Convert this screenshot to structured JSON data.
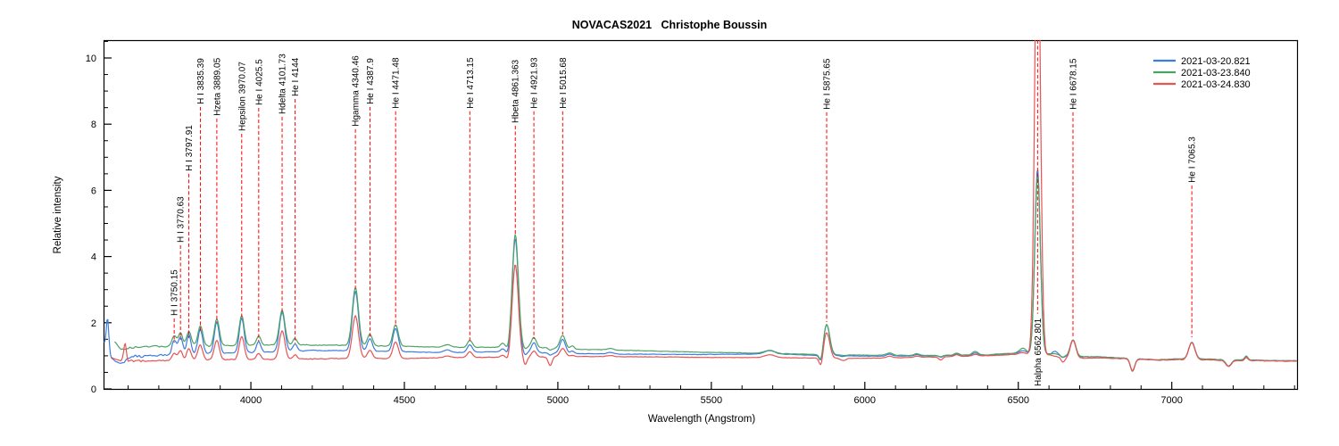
{
  "chart_data": {
    "type": "line",
    "title": "NOVACAS2021   Christophe Boussin",
    "xlabel": "Wavelength (Angstrom)",
    "ylabel": "Relative intensity",
    "xlim": [
      3520,
      7411
    ],
    "ylim": [
      0,
      10.54
    ],
    "x_major_ticks": [
      4000,
      4500,
      5000,
      5500,
      6000,
      6500,
      7000
    ],
    "x_minor_step": 100,
    "y_major_ticks": [
      0,
      2,
      4,
      6,
      8,
      10
    ],
    "y_minor_step": 0.5,
    "grid": false,
    "legend_position": "top-right",
    "axis_color": "#000000",
    "annotation_color": "#ff0000",
    "series": [
      {
        "name": "2021-03-20.821",
        "color": "#3d7ce0",
        "start": 3522,
        "seed": 1,
        "continuum": [
          [
            3522,
            1.35
          ],
          [
            3545,
            0.95
          ],
          [
            3562,
            0.82
          ],
          [
            3584,
            0.8
          ],
          [
            3620,
            0.98
          ],
          [
            3700,
            1.02
          ],
          [
            3850,
            1.06
          ],
          [
            4000,
            1.1
          ],
          [
            4200,
            1.16
          ],
          [
            4400,
            1.14
          ],
          [
            4600,
            1.1
          ],
          [
            4800,
            1.12
          ],
          [
            5000,
            1.08
          ],
          [
            5200,
            1.05
          ],
          [
            5500,
            1.04
          ],
          [
            5700,
            1.06
          ],
          [
            5820,
            1.02
          ],
          [
            6000,
            0.99
          ],
          [
            6200,
            1.0
          ],
          [
            6400,
            1.02
          ],
          [
            6500,
            1.08
          ],
          [
            6600,
            1.05
          ],
          [
            6660,
            0.97
          ],
          [
            6760,
            0.97
          ],
          [
            6845,
            0.93
          ],
          [
            6950,
            0.88
          ],
          [
            7050,
            0.91
          ],
          [
            7150,
            0.89
          ],
          [
            7300,
            0.86
          ],
          [
            7408,
            0.85
          ]
        ]
      },
      {
        "name": "2021-03-23.840",
        "color": "#4da263",
        "start": 3556,
        "seed": 2,
        "continuum": [
          [
            3556,
            1.42
          ],
          [
            3578,
            1.18
          ],
          [
            3620,
            1.26
          ],
          [
            3700,
            1.29
          ],
          [
            3900,
            1.31
          ],
          [
            4100,
            1.33
          ],
          [
            4300,
            1.32
          ],
          [
            4500,
            1.28
          ],
          [
            4700,
            1.25
          ],
          [
            4900,
            1.27
          ],
          [
            5050,
            1.2
          ],
          [
            5250,
            1.16
          ],
          [
            5450,
            1.11
          ],
          [
            5650,
            1.08
          ],
          [
            5850,
            1.04
          ],
          [
            6000,
            1.02
          ],
          [
            6200,
            1.01
          ],
          [
            6400,
            1.03
          ],
          [
            6500,
            1.09
          ],
          [
            6600,
            1.06
          ],
          [
            6660,
            0.99
          ],
          [
            6760,
            0.97
          ],
          [
            6845,
            0.93
          ],
          [
            6950,
            0.88
          ],
          [
            7050,
            0.91
          ],
          [
            7150,
            0.89
          ],
          [
            7300,
            0.86
          ],
          [
            7408,
            0.85
          ]
        ]
      },
      {
        "name": "2021-03-24.830",
        "color": "#e85353",
        "start": 3546,
        "seed": 3,
        "continuum": [
          [
            3546,
            0.95
          ],
          [
            3570,
            0.88
          ],
          [
            3620,
            0.85
          ],
          [
            3700,
            0.86
          ],
          [
            3800,
            0.88
          ],
          [
            3950,
            0.89
          ],
          [
            4100,
            0.9
          ],
          [
            4300,
            0.92
          ],
          [
            4500,
            0.92
          ],
          [
            4700,
            0.95
          ],
          [
            4900,
            0.96
          ],
          [
            5100,
            0.98
          ],
          [
            5300,
            0.97
          ],
          [
            5500,
            0.95
          ],
          [
            5700,
            0.95
          ],
          [
            5900,
            0.92
          ],
          [
            6050,
            0.93
          ],
          [
            6200,
            0.96
          ],
          [
            6400,
            1.0
          ],
          [
            6500,
            1.05
          ],
          [
            6600,
            1.02
          ],
          [
            6660,
            0.92
          ],
          [
            6760,
            0.94
          ],
          [
            6845,
            0.91
          ],
          [
            6950,
            0.87
          ],
          [
            7050,
            0.89
          ],
          [
            7150,
            0.87
          ],
          [
            7300,
            0.85
          ],
          [
            7408,
            0.84
          ]
        ]
      }
    ],
    "spectral_lines": [
      {
        "label": "H I 3750.15",
        "wl": 3750.15,
        "sigma": 7,
        "amp": [
          0.45,
          0.3,
          0.2
        ],
        "line_top": 2.13,
        "line_bot": 1.4,
        "label_pos": "above"
      },
      {
        "label": "H I 3770.63",
        "wl": 3770.63,
        "sigma": 7,
        "amp": [
          0.55,
          0.4,
          0.28
        ],
        "line_top": 4.34,
        "line_bot": 1.48,
        "label_pos": "above"
      },
      {
        "label": "H I 3797.91",
        "wl": 3797.91,
        "sigma": 7,
        "amp": [
          0.6,
          0.45,
          0.32
        ],
        "line_top": 6.5,
        "line_bot": 1.54,
        "label_pos": "above"
      },
      {
        "label": "H I 3835.39",
        "wl": 3835.39,
        "sigma": 8,
        "amp": [
          0.75,
          0.6,
          0.45
        ],
        "line_top": 8.52,
        "line_bot": 1.75,
        "label_pos": "above"
      },
      {
        "label": "Hzeta 3889.05",
        "wl": 3889.05,
        "sigma": 8,
        "amp": [
          0.95,
          0.8,
          0.6
        ],
        "line_top": 8.17,
        "line_bot": 2.0,
        "label_pos": "above"
      },
      {
        "label": "Hepsilon 3970.07",
        "wl": 3970.07,
        "sigma": 8,
        "amp": [
          1.05,
          0.9,
          0.7
        ],
        "line_top": 7.71,
        "line_bot": 2.13,
        "label_pos": "above"
      },
      {
        "label": "He I 4025.5",
        "wl": 4025.5,
        "sigma": 7,
        "amp": [
          0.32,
          0.28,
          0.18
        ],
        "line_top": 8.49,
        "line_bot": 1.43,
        "label_pos": "above"
      },
      {
        "label": "Hdelta 4101.73",
        "wl": 4101.73,
        "sigma": 9,
        "amp": [
          1.2,
          1.05,
          0.85
        ],
        "line_top": 8.22,
        "line_bot": 2.32,
        "label_pos": "above"
      },
      {
        "label": "He I 4144",
        "wl": 4144,
        "sigma": 7,
        "amp": [
          0.22,
          0.2,
          0.12
        ],
        "line_top": 8.76,
        "line_bot": 1.38,
        "label_pos": "above"
      },
      {
        "label": "Hgamma 4340.46",
        "wl": 4340.46,
        "sigma": 10,
        "amp": [
          1.8,
          1.75,
          1.3
        ],
        "line_top": 7.85,
        "line_bot": 3.02,
        "label_pos": "above"
      },
      {
        "label": "He I 4387.9",
        "wl": 4387.9,
        "sigma": 8,
        "amp": [
          0.38,
          0.35,
          0.25
        ],
        "line_top": 8.52,
        "line_bot": 1.54,
        "label_pos": "above"
      },
      {
        "label": "He I 4471.48",
        "wl": 4471.48,
        "sigma": 9,
        "amp": [
          0.7,
          0.65,
          0.5
        ],
        "line_top": 8.39,
        "line_bot": 1.89,
        "label_pos": "above"
      },
      {
        "label": "He I 4713.15",
        "wl": 4713.15,
        "sigma": 8,
        "amp": [
          0.22,
          0.22,
          0.17
        ],
        "line_top": 8.39,
        "line_bot": 1.38,
        "label_pos": "above"
      },
      {
        "label": "Hbeta 4861.363",
        "wl": 4861.363,
        "sigma": 10,
        "amp": [
          3.45,
          3.4,
          2.8
        ],
        "line_top": 7.95,
        "line_bot": 4.66,
        "label_pos": "above"
      },
      {
        "label": "He I 4921.93",
        "wl": 4921.93,
        "sigma": 8,
        "amp": [
          0.3,
          0.3,
          0.18
        ],
        "line_top": 8.39,
        "line_bot": 1.51,
        "label_pos": "above"
      },
      {
        "label": "He I 5015.68",
        "wl": 5015.68,
        "sigma": 9,
        "amp": [
          0.42,
          0.4,
          0.25
        ],
        "line_top": 8.39,
        "line_bot": 1.64,
        "label_pos": "above"
      },
      {
        "label": "He I 5875.65",
        "wl": 5875.65,
        "sigma": 10,
        "amp": [
          0.93,
          0.92,
          0.78
        ],
        "line_top": 8.36,
        "line_bot": 2.02,
        "label_pos": "above"
      },
      {
        "label": "Halpha 6562.801",
        "wl": 6562.801,
        "sigma": 9,
        "amp": [
          5.6,
          5.4,
          14.0
        ],
        "line_top": 10.54,
        "line_bot": 2.27,
        "label_pos": "below"
      },
      {
        "label": "He I 6678.15",
        "wl": 6678.15,
        "sigma": 9,
        "amp": [
          0.5,
          0.5,
          0.55
        ],
        "line_top": 8.36,
        "line_bot": 1.56,
        "label_pos": "above"
      },
      {
        "label": "He I 7065.3",
        "wl": 7065.3,
        "sigma": 10,
        "amp": [
          0.5,
          0.5,
          0.52
        ],
        "line_top": 6.15,
        "line_bot": 1.56,
        "label_pos": "above"
      }
    ],
    "features": [
      {
        "wl": 3533,
        "sigma": 4,
        "amp": [
          1.0,
          0,
          0
        ]
      },
      {
        "wl": 3590,
        "sigma": 4,
        "amp": [
          0,
          0,
          0.5
        ]
      },
      {
        "wl": 4640,
        "sigma": 12,
        "amp": [
          0.07,
          0.08,
          0.05
        ]
      },
      {
        "wl": 4820,
        "sigma": 7,
        "amp": [
          0.1,
          0.12,
          0.05
        ]
      },
      {
        "wl": 4838,
        "sigma": 5,
        "amp": [
          -0.12,
          -0.1,
          -0.12
        ]
      },
      {
        "wl": 4893,
        "sigma": 6,
        "amp": [
          -0.08,
          -0.06,
          -0.24
        ]
      },
      {
        "wl": 4975,
        "sigma": 6,
        "amp": [
          -0.06,
          -0.06,
          -0.26
        ]
      },
      {
        "wl": 5047,
        "sigma": 6,
        "amp": [
          0.07,
          0.1,
          0.04
        ]
      },
      {
        "wl": 5170,
        "sigma": 10,
        "amp": [
          0.05,
          0.05,
          0.03
        ]
      },
      {
        "wl": 5690,
        "sigma": 16,
        "amp": [
          0.1,
          0.1,
          0.08
        ]
      },
      {
        "wl": 5858,
        "sigma": 6,
        "amp": [
          -0.28,
          -0.28,
          -0.32
        ]
      },
      {
        "wl": 5930,
        "sigma": 8,
        "amp": [
          -0.02,
          -0.02,
          -0.07
        ]
      },
      {
        "wl": 6080,
        "sigma": 10,
        "amp": [
          0.05,
          0.07,
          0.05
        ]
      },
      {
        "wl": 6170,
        "sigma": 8,
        "amp": [
          0.04,
          0.05,
          0.04
        ]
      },
      {
        "wl": 6247,
        "sigma": 6,
        "amp": [
          -0.05,
          -0.04,
          -0.1
        ]
      },
      {
        "wl": 6300,
        "sigma": 8,
        "amp": [
          0.05,
          0.06,
          0.05
        ]
      },
      {
        "wl": 6360,
        "sigma": 9,
        "amp": [
          0.07,
          0.11,
          0.05
        ]
      },
      {
        "wl": 6515,
        "sigma": 10,
        "amp": [
          0.08,
          0.15,
          0.05
        ]
      },
      {
        "wl": 6620,
        "sigma": 8,
        "amp": [
          0.12,
          0.03,
          0
        ]
      },
      {
        "wl": 6645,
        "sigma": 6,
        "amp": [
          -0.04,
          -0.04,
          -0.13
        ]
      },
      {
        "wl": 6872,
        "sigma": 7,
        "amp": [
          -0.38,
          -0.38,
          -0.36
        ]
      },
      {
        "wl": 7185,
        "sigma": 9,
        "amp": [
          -0.2,
          -0.2,
          -0.19
        ]
      },
      {
        "wl": 7243,
        "sigma": 5,
        "amp": [
          0.12,
          0.11,
          0.1
        ]
      }
    ]
  }
}
